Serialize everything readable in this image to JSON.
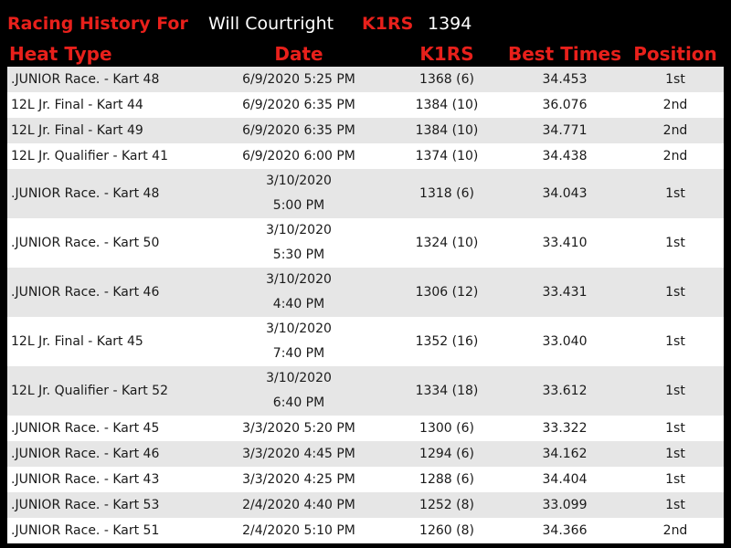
{
  "header": {
    "history_label": "Racing History For",
    "driver_name": "Will Courtright",
    "rating_label": "K1RS",
    "rating_value": "1394"
  },
  "table": {
    "columns": [
      "Heat Type",
      "Date",
      "K1RS",
      "Best Times",
      "Position"
    ],
    "rows": [
      {
        "heat": ".JUNIOR Race. - Kart 48",
        "date": "6/9/2020 5:25 PM",
        "k1rs": "1368 (6)",
        "best": "34.453",
        "pos": "1st"
      },
      {
        "heat": "12L Jr. Final - Kart 44",
        "date": "6/9/2020 6:35 PM",
        "k1rs": "1384 (10)",
        "best": "36.076",
        "pos": "2nd"
      },
      {
        "heat": "12L Jr. Final - Kart 49",
        "date": "6/9/2020 6:35 PM",
        "k1rs": "1384 (10)",
        "best": "34.771",
        "pos": "2nd"
      },
      {
        "heat": "12L Jr. Qualifier - Kart 41",
        "date": "6/9/2020 6:00 PM",
        "k1rs": "1374 (10)",
        "best": "34.438",
        "pos": "2nd"
      },
      {
        "heat": ".JUNIOR Race. - Kart 48",
        "date": "3/10/2020 5:00 PM",
        "k1rs": "1318 (6)",
        "best": "34.043",
        "pos": "1st"
      },
      {
        "heat": ".JUNIOR Race. - Kart 50",
        "date": "3/10/2020 5:30 PM",
        "k1rs": "1324 (10)",
        "best": "33.410",
        "pos": "1st"
      },
      {
        "heat": ".JUNIOR Race. - Kart 46",
        "date": "3/10/2020 4:40 PM",
        "k1rs": "1306 (12)",
        "best": "33.431",
        "pos": "1st"
      },
      {
        "heat": "12L Jr. Final - Kart 45",
        "date": "3/10/2020 7:40 PM",
        "k1rs": "1352 (16)",
        "best": "33.040",
        "pos": "1st"
      },
      {
        "heat": "12L Jr. Qualifier - Kart 52",
        "date": "3/10/2020 6:40 PM",
        "k1rs": "1334 (18)",
        "best": "33.612",
        "pos": "1st"
      },
      {
        "heat": ".JUNIOR Race. - Kart 45",
        "date": "3/3/2020 5:20 PM",
        "k1rs": "1300 (6)",
        "best": "33.322",
        "pos": "1st"
      },
      {
        "heat": ".JUNIOR Race. - Kart 46",
        "date": "3/3/2020 4:45 PM",
        "k1rs": "1294 (6)",
        "best": "34.162",
        "pos": "1st"
      },
      {
        "heat": ".JUNIOR Race. - Kart 43",
        "date": "3/3/2020 4:25 PM",
        "k1rs": "1288 (6)",
        "best": "34.404",
        "pos": "1st"
      },
      {
        "heat": ".JUNIOR Race. - Kart 53",
        "date": "2/4/2020 4:40 PM",
        "k1rs": "1252 (8)",
        "best": "33.099",
        "pos": "1st"
      },
      {
        "heat": ".JUNIOR Race. - Kart 51",
        "date": "2/4/2020 5:10 PM",
        "k1rs": "1260 (8)",
        "best": "34.366",
        "pos": "2nd"
      }
    ]
  }
}
